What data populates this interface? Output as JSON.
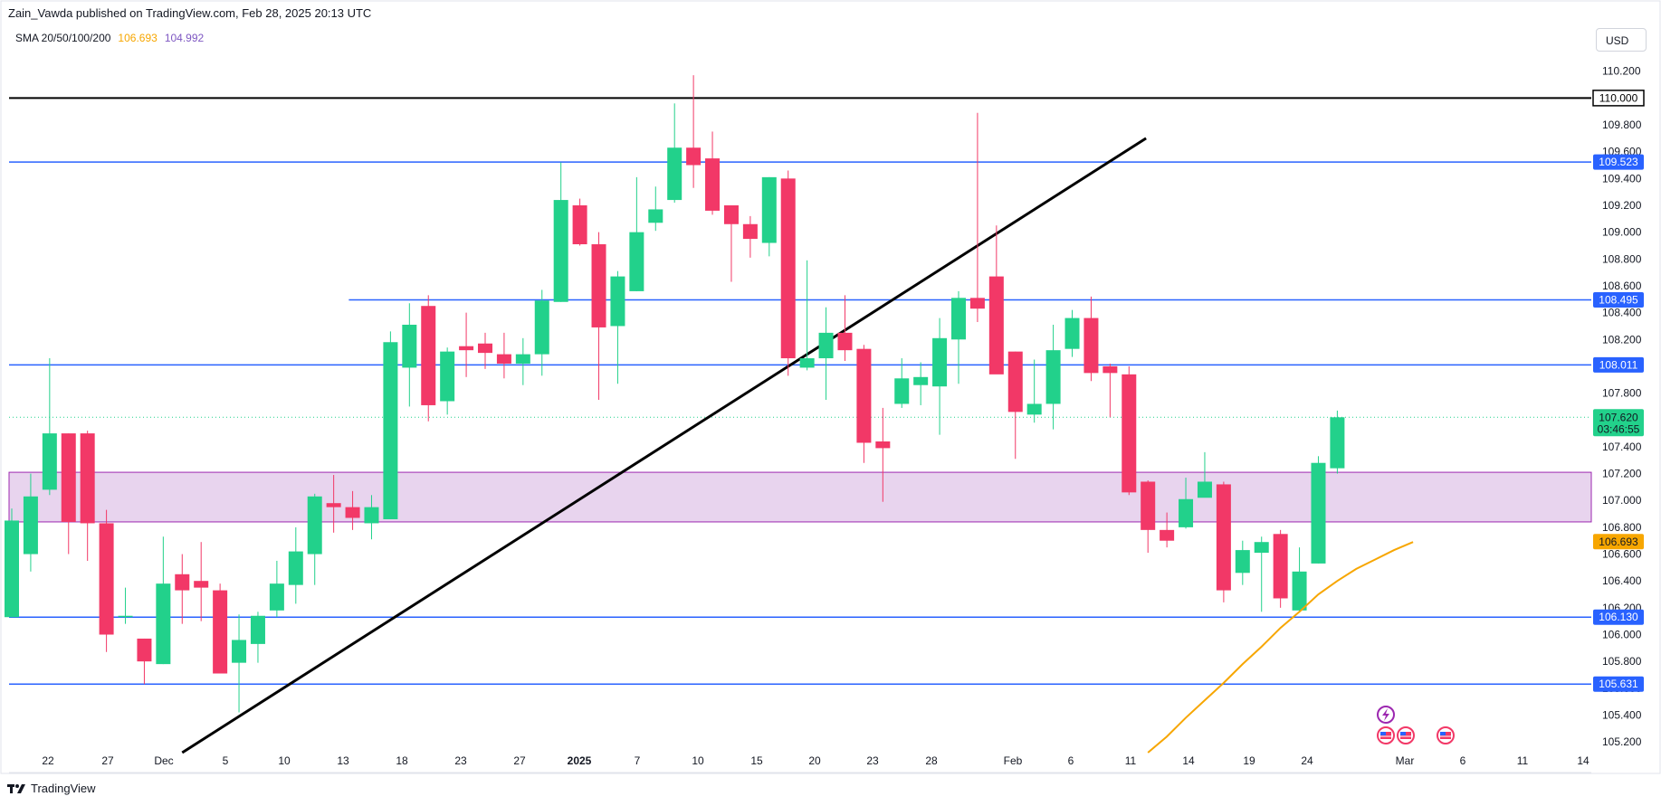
{
  "header": {
    "title": "Zain_Vawda published on TradingView.com, Feb 28, 2025 20:13 UTC"
  },
  "indicator": {
    "label": "SMA 20/50/100/200",
    "value1": "106.693",
    "value2": "104.992",
    "color1": "#f7a600",
    "color2": "#7e57c2"
  },
  "currency_button": "USD",
  "footer": {
    "brand": "TradingView"
  },
  "colors": {
    "up": "#22d18b",
    "down": "#f23867",
    "level": "#2962ff",
    "zone_fill": "#e8d4ee",
    "zone_border": "#9c27b0",
    "trendline": "#000000",
    "sma": "#f7a600"
  },
  "chart_data": {
    "type": "candlestick",
    "y_range": [
      105.12,
      110.36
    ],
    "y_ticks": [
      "105.200",
      "105.400",
      "105.600",
      "105.800",
      "106.000",
      "106.200",
      "106.400",
      "106.600",
      "106.800",
      "107.000",
      "107.200",
      "107.400",
      "107.600",
      "107.800",
      "108.000",
      "108.200",
      "108.400",
      "108.600",
      "108.800",
      "109.000",
      "109.200",
      "109.400",
      "109.600",
      "109.800",
      "110.000",
      "110.200"
    ],
    "x_labels": [
      "22",
      "27",
      "Dec",
      "5",
      "10",
      "13",
      "18",
      "23",
      "27",
      "2025",
      "7",
      "10",
      "15",
      "20",
      "23",
      "28",
      "Feb",
      "6",
      "11",
      "14",
      "19",
      "24",
      "Mar",
      "6",
      "11",
      "14"
    ],
    "candles": [
      {
        "o": 106.13,
        "h": 106.94,
        "l": 106.13,
        "c": 106.85
      },
      {
        "o": 106.6,
        "h": 107.2,
        "l": 106.47,
        "c": 107.03
      },
      {
        "o": 107.08,
        "h": 108.06,
        "l": 107.04,
        "c": 107.5
      },
      {
        "o": 107.5,
        "h": 107.5,
        "l": 106.6,
        "c": 106.84
      },
      {
        "o": 107.5,
        "h": 107.52,
        "l": 106.55,
        "c": 106.83
      },
      {
        "o": 106.83,
        "h": 106.93,
        "l": 105.87,
        "c": 106.0
      },
      {
        "o": 106.13,
        "h": 106.35,
        "l": 106.08,
        "c": 106.14
      },
      {
        "o": 105.97,
        "h": 105.97,
        "l": 105.63,
        "c": 105.8
      },
      {
        "o": 105.78,
        "h": 106.73,
        "l": 105.78,
        "c": 106.38
      },
      {
        "o": 106.45,
        "h": 106.6,
        "l": 106.08,
        "c": 106.33
      },
      {
        "o": 106.4,
        "h": 106.69,
        "l": 106.1,
        "c": 106.35
      },
      {
        "o": 106.33,
        "h": 106.38,
        "l": 105.71,
        "c": 105.71
      },
      {
        "o": 105.79,
        "h": 106.15,
        "l": 105.42,
        "c": 105.96
      },
      {
        "o": 105.93,
        "h": 106.17,
        "l": 105.79,
        "c": 106.14
      },
      {
        "o": 106.18,
        "h": 106.55,
        "l": 106.13,
        "c": 106.38
      },
      {
        "o": 106.37,
        "h": 106.8,
        "l": 106.23,
        "c": 106.62
      },
      {
        "o": 106.6,
        "h": 107.05,
        "l": 106.37,
        "c": 107.03
      },
      {
        "o": 106.98,
        "h": 107.19,
        "l": 106.76,
        "c": 106.95
      },
      {
        "o": 106.95,
        "h": 107.07,
        "l": 106.78,
        "c": 106.87
      },
      {
        "o": 106.83,
        "h": 107.04,
        "l": 106.71,
        "c": 106.95
      },
      {
        "o": 106.86,
        "h": 108.26,
        "l": 106.86,
        "c": 108.18
      },
      {
        "o": 107.99,
        "h": 108.47,
        "l": 107.7,
        "c": 108.31
      },
      {
        "o": 108.45,
        "h": 108.53,
        "l": 107.59,
        "c": 107.71
      },
      {
        "o": 107.74,
        "h": 108.14,
        "l": 107.64,
        "c": 108.11
      },
      {
        "o": 108.15,
        "h": 108.4,
        "l": 107.92,
        "c": 108.12
      },
      {
        "o": 108.17,
        "h": 108.25,
        "l": 107.98,
        "c": 108.1
      },
      {
        "o": 108.09,
        "h": 108.25,
        "l": 107.91,
        "c": 108.02
      },
      {
        "o": 108.02,
        "h": 108.21,
        "l": 107.86,
        "c": 108.09
      },
      {
        "o": 108.09,
        "h": 108.57,
        "l": 107.93,
        "c": 108.49
      },
      {
        "o": 108.48,
        "h": 109.52,
        "l": 108.48,
        "c": 109.24
      },
      {
        "o": 109.2,
        "h": 109.25,
        "l": 108.9,
        "c": 108.91
      },
      {
        "o": 108.91,
        "h": 109.0,
        "l": 107.75,
        "c": 108.29
      },
      {
        "o": 108.3,
        "h": 108.71,
        "l": 107.87,
        "c": 108.67
      },
      {
        "o": 108.56,
        "h": 109.41,
        "l": 108.56,
        "c": 109.0
      },
      {
        "o": 109.07,
        "h": 109.34,
        "l": 109.01,
        "c": 109.17
      },
      {
        "o": 109.24,
        "h": 109.96,
        "l": 109.22,
        "c": 109.63
      },
      {
        "o": 109.63,
        "h": 110.17,
        "l": 109.33,
        "c": 109.5
      },
      {
        "o": 109.55,
        "h": 109.75,
        "l": 109.13,
        "c": 109.16
      },
      {
        "o": 109.2,
        "h": 109.2,
        "l": 108.63,
        "c": 109.06
      },
      {
        "o": 109.06,
        "h": 109.12,
        "l": 108.81,
        "c": 108.95
      },
      {
        "o": 108.92,
        "h": 109.41,
        "l": 108.82,
        "c": 109.41
      },
      {
        "o": 109.4,
        "h": 109.46,
        "l": 107.93,
        "c": 108.06
      },
      {
        "o": 107.99,
        "h": 108.79,
        "l": 107.97,
        "c": 108.06
      },
      {
        "o": 108.06,
        "h": 108.44,
        "l": 107.75,
        "c": 108.25
      },
      {
        "o": 108.25,
        "h": 108.53,
        "l": 108.04,
        "c": 108.12
      },
      {
        "o": 108.13,
        "h": 108.16,
        "l": 107.28,
        "c": 107.43
      },
      {
        "o": 107.44,
        "h": 107.69,
        "l": 106.99,
        "c": 107.39
      },
      {
        "o": 107.72,
        "h": 108.06,
        "l": 107.69,
        "c": 107.91
      },
      {
        "o": 107.86,
        "h": 108.03,
        "l": 107.71,
        "c": 107.92
      },
      {
        "o": 107.85,
        "h": 108.36,
        "l": 107.49,
        "c": 108.21
      },
      {
        "o": 108.2,
        "h": 108.56,
        "l": 107.87,
        "c": 108.51
      },
      {
        "o": 108.51,
        "h": 109.89,
        "l": 108.33,
        "c": 108.43
      },
      {
        "o": 108.67,
        "h": 109.05,
        "l": 107.97,
        "c": 107.94
      },
      {
        "o": 108.11,
        "h": 108.11,
        "l": 107.31,
        "c": 107.66
      },
      {
        "o": 107.64,
        "h": 108.05,
        "l": 107.58,
        "c": 107.72
      },
      {
        "o": 107.72,
        "h": 108.31,
        "l": 107.53,
        "c": 108.12
      },
      {
        "o": 108.13,
        "h": 108.42,
        "l": 108.07,
        "c": 108.36
      },
      {
        "o": 108.36,
        "h": 108.52,
        "l": 107.89,
        "c": 107.95
      },
      {
        "o": 108.0,
        "h": 108.02,
        "l": 107.62,
        "c": 107.95
      },
      {
        "o": 107.94,
        "h": 108.0,
        "l": 107.04,
        "c": 107.06
      },
      {
        "o": 107.14,
        "h": 107.15,
        "l": 106.61,
        "c": 106.78
      },
      {
        "o": 106.78,
        "h": 106.91,
        "l": 106.65,
        "c": 106.7
      },
      {
        "o": 106.8,
        "h": 107.17,
        "l": 106.79,
        "c": 107.01
      },
      {
        "o": 107.02,
        "h": 107.36,
        "l": 107.03,
        "c": 107.14
      },
      {
        "o": 107.12,
        "h": 107.14,
        "l": 106.24,
        "c": 106.33
      },
      {
        "o": 106.46,
        "h": 106.7,
        "l": 106.37,
        "c": 106.63
      },
      {
        "o": 106.61,
        "h": 106.73,
        "l": 106.17,
        "c": 106.69
      },
      {
        "o": 106.75,
        "h": 106.78,
        "l": 106.2,
        "c": 106.27
      },
      {
        "o": 106.18,
        "h": 106.65,
        "l": 106.17,
        "c": 106.47
      },
      {
        "o": 106.53,
        "h": 107.33,
        "l": 106.53,
        "c": 107.28
      },
      {
        "o": 107.24,
        "h": 107.67,
        "l": 107.2,
        "c": 107.62
      }
    ],
    "sma_series": [
      {
        "name": "SMA 100",
        "values": [
          [
            60,
            105.12
          ],
          [
            61,
            105.24
          ],
          [
            62,
            105.38
          ],
          [
            63,
            105.51
          ],
          [
            64,
            105.64
          ],
          [
            65,
            105.78
          ],
          [
            66,
            105.91
          ],
          [
            67,
            106.05
          ],
          [
            68,
            106.17
          ],
          [
            69,
            106.3
          ],
          [
            70,
            106.4
          ],
          [
            71,
            106.49
          ],
          [
            72,
            106.56
          ],
          [
            73,
            106.63
          ],
          [
            74,
            106.69
          ]
        ]
      }
    ],
    "horizontal_levels": [
      {
        "value": 110.0,
        "label": "110.000",
        "color": "#000000",
        "width": 2,
        "from_index": -1
      },
      {
        "value": 109.523,
        "label": "109.523",
        "color": "#2962ff",
        "width": 1.5,
        "from_index": -1
      },
      {
        "value": 108.495,
        "label": "108.495",
        "color": "#2962ff",
        "width": 1.5,
        "from_index": 17.8
      },
      {
        "value": 108.011,
        "label": "108.011",
        "color": "#2962ff",
        "width": 1.5,
        "from_index": -1
      },
      {
        "value": 106.13,
        "label": "106.130",
        "color": "#2962ff",
        "width": 1.5,
        "from_index": -1
      },
      {
        "value": 105.631,
        "label": "105.631",
        "color": "#2962ff",
        "width": 1.5,
        "from_index": -1
      }
    ],
    "zone": {
      "top": 107.21,
      "bottom": 106.84
    },
    "trendline": {
      "start": [
        9.0,
        105.12
      ],
      "end": [
        59.9,
        109.7
      ]
    },
    "current_price": {
      "value": "107.620",
      "countdown": "03:46:55"
    },
    "sma_label": "106.693"
  }
}
